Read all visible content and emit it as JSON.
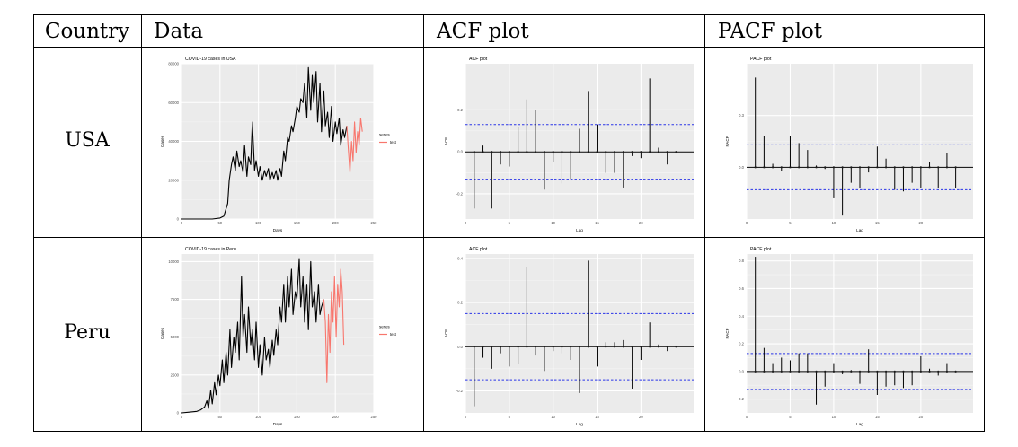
{
  "headers": [
    "Country",
    "Data",
    "ACF plot",
    "PACF plot"
  ],
  "rows": [
    {
      "country": "USA",
      "data": {
        "title": "COVID-19 cases in USA",
        "xlabel": "Days",
        "ylabel": "Cases",
        "legend_title": "series",
        "legend_item": "test"
      },
      "acf": {
        "title": "ACF plot",
        "xlabel": "Lag",
        "ylabel": "ACF"
      },
      "pacf": {
        "title": "PACF plot",
        "xlabel": "Lag",
        "ylabel": "PACF"
      }
    },
    {
      "country": "Peru",
      "data": {
        "title": "COVID-19 cases in Peru",
        "xlabel": "Days",
        "ylabel": "Cases",
        "legend_title": "series",
        "legend_item": "test"
      },
      "acf": {
        "title": "ACF plot",
        "xlabel": "Lag",
        "ylabel": "ACF"
      },
      "pacf": {
        "title": "PACF plot",
        "xlabel": "Lag",
        "ylabel": "PACF"
      }
    }
  ],
  "chart_data": [
    {
      "id": "usa-cases",
      "type": "line",
      "title": "COVID-19 cases in USA",
      "xlabel": "Days",
      "ylabel": "Cases",
      "xlim": [
        0,
        250
      ],
      "ylim": [
        0,
        80000
      ],
      "xticks": [
        0,
        50,
        100,
        150,
        200,
        250
      ],
      "yticks": [
        0,
        20000,
        40000,
        60000,
        80000
      ],
      "ytick_labels": [
        "0",
        "20000",
        "40000",
        "60000",
        "80000"
      ],
      "legend": {
        "title": "series",
        "items": [
          "test"
        ],
        "position": "right"
      },
      "series": [
        {
          "name": "",
          "color": "#000000",
          "x": [
            0,
            10,
            20,
            30,
            40,
            50,
            55,
            60,
            62,
            65,
            67,
            70,
            72,
            75,
            77,
            80,
            82,
            85,
            87,
            90,
            92,
            95,
            97,
            100,
            102,
            105,
            108,
            110,
            113,
            115,
            118,
            120,
            123,
            125,
            128,
            130,
            133,
            135,
            138,
            140,
            143,
            145,
            148,
            150,
            153,
            155,
            158,
            160,
            163,
            165,
            168,
            170,
            172,
            175,
            177,
            180,
            182,
            185,
            187,
            190,
            192,
            195,
            197,
            200,
            202,
            205,
            207,
            210,
            212,
            215
          ],
          "y": [
            0,
            0,
            0,
            0,
            0,
            500,
            1500,
            8000,
            20000,
            28000,
            32000,
            25000,
            35000,
            27000,
            30000,
            24000,
            38000,
            22000,
            32000,
            28000,
            50000,
            25000,
            30000,
            22000,
            27000,
            20000,
            25000,
            22000,
            26000,
            20000,
            24000,
            21000,
            25000,
            20000,
            26000,
            22000,
            35000,
            30000,
            42000,
            40000,
            48000,
            45000,
            52000,
            58000,
            55000,
            62000,
            60000,
            70000,
            52000,
            78000,
            56000,
            74000,
            60000,
            76000,
            50000,
            70000,
            45000,
            66000,
            48000,
            55000,
            42000,
            58000,
            40000,
            50000,
            44000,
            52000,
            38000,
            46000,
            42000,
            48000
          ]
        },
        {
          "name": "test",
          "color": "#f8766d",
          "x": [
            215,
            217,
            219,
            221,
            223,
            225,
            227,
            229,
            231,
            233,
            235
          ],
          "y": [
            48000,
            35000,
            24000,
            40000,
            30000,
            50000,
            34000,
            45000,
            38000,
            52000,
            45000
          ]
        }
      ]
    },
    {
      "id": "usa-acf",
      "type": "bar",
      "title": "ACF plot",
      "xlabel": "Lag",
      "ylabel": "ACF",
      "xlim": [
        0,
        26
      ],
      "ylim": [
        -0.32,
        0.42
      ],
      "xticks": [
        0,
        5,
        10,
        15,
        20
      ],
      "yticks": [
        -0.2,
        0.0,
        0.2
      ],
      "ytick_labels": [
        "-0.2",
        "0.0",
        "0.2"
      ],
      "ci": 0.13,
      "lags": [
        1,
        2,
        3,
        4,
        5,
        6,
        7,
        8,
        9,
        10,
        11,
        12,
        13,
        14,
        15,
        16,
        17,
        18,
        19,
        20,
        21,
        22,
        23,
        24
      ],
      "values": [
        -0.27,
        0.03,
        -0.27,
        -0.06,
        -0.07,
        0.12,
        0.25,
        0.2,
        -0.18,
        -0.05,
        -0.15,
        -0.13,
        0.11,
        0.29,
        0.13,
        -0.1,
        -0.1,
        -0.17,
        -0.02,
        -0.03,
        0.35,
        0.02,
        -0.06,
        0.0
      ]
    },
    {
      "id": "usa-pacf",
      "type": "bar",
      "title": "PACF plot",
      "xlabel": "Lag",
      "ylabel": "PACF",
      "xlim": [
        0,
        26
      ],
      "ylim": [
        -0.3,
        0.6
      ],
      "xticks": [
        0,
        5,
        10,
        15,
        20
      ],
      "yticks": [
        0.0,
        0.3
      ],
      "ytick_labels": [
        "0.0",
        "0.3"
      ],
      "ci": 0.13,
      "lags": [
        1,
        2,
        3,
        4,
        5,
        6,
        7,
        8,
        9,
        10,
        11,
        12,
        13,
        14,
        15,
        16,
        17,
        18,
        19,
        20,
        21,
        22,
        23,
        24
      ],
      "values": [
        0.52,
        0.18,
        0.02,
        -0.02,
        0.18,
        0.14,
        0.1,
        0.01,
        -0.01,
        -0.18,
        -0.28,
        -0.09,
        -0.12,
        -0.03,
        0.12,
        0.05,
        -0.13,
        -0.14,
        -0.09,
        -0.12,
        0.03,
        -0.12,
        0.08,
        -0.12
      ]
    },
    {
      "id": "peru-cases",
      "type": "line",
      "title": "COVID-19 cases in Peru",
      "xlabel": "Days",
      "ylabel": "Cases",
      "xlim": [
        0,
        250
      ],
      "ylim": [
        0,
        10500
      ],
      "xticks": [
        0,
        50,
        100,
        150,
        200,
        250
      ],
      "yticks": [
        0,
        2500,
        5000,
        7500,
        10000
      ],
      "ytick_labels": [
        "0",
        "2500",
        "5000",
        "7500",
        "10000"
      ],
      "legend": {
        "title": "series",
        "items": [
          "test"
        ],
        "position": "right"
      },
      "series": [
        {
          "name": "",
          "color": "#000000",
          "x": [
            0,
            10,
            20,
            25,
            30,
            33,
            35,
            38,
            40,
            43,
            45,
            48,
            50,
            53,
            55,
            58,
            60,
            63,
            65,
            68,
            70,
            73,
            75,
            78,
            80,
            82,
            85,
            87,
            90,
            92,
            95,
            97,
            100,
            102,
            105,
            108,
            110,
            113,
            115,
            118,
            120,
            123,
            125,
            128,
            130,
            133,
            135,
            138,
            140,
            143,
            145,
            148,
            150,
            153,
            155,
            158,
            160,
            163,
            165,
            168,
            170,
            173,
            175,
            178,
            180,
            182,
            185
          ],
          "y": [
            0,
            50,
            100,
            200,
            400,
            800,
            300,
            1500,
            600,
            2000,
            1200,
            2500,
            1800,
            3500,
            2000,
            4000,
            2500,
            5500,
            3000,
            5000,
            4000,
            6000,
            3500,
            9000,
            5000,
            6500,
            4000,
            7000,
            4500,
            5500,
            3500,
            6000,
            3000,
            4500,
            2500,
            5000,
            3500,
            4200,
            3000,
            4800,
            3800,
            5500,
            4500,
            7000,
            6000,
            8500,
            6000,
            9000,
            7000,
            9500,
            6500,
            8000,
            7500,
            10200,
            7000,
            9000,
            6000,
            8500,
            5500,
            10000,
            7000,
            8000,
            6000,
            8500,
            6500,
            7000,
            7500
          ]
        },
        {
          "name": "test",
          "color": "#f8766d",
          "x": [
            185,
            187,
            189,
            191,
            193,
            195,
            197,
            199,
            201,
            203,
            205,
            207,
            209,
            211
          ],
          "y": [
            7500,
            6000,
            2000,
            6500,
            4000,
            8000,
            6000,
            9000,
            5000,
            8500,
            7000,
            9500,
            8000,
            4500
          ]
        }
      ]
    },
    {
      "id": "peru-acf",
      "type": "bar",
      "title": "ACF plot",
      "xlabel": "Lag",
      "ylabel": "ACF",
      "xlim": [
        0,
        26
      ],
      "ylim": [
        -0.3,
        0.42
      ],
      "xticks": [
        0,
        5,
        10,
        15,
        20
      ],
      "yticks": [
        -0.2,
        0.0,
        0.2,
        0.4
      ],
      "ytick_labels": [
        "-0.2",
        "0.0",
        "0.2",
        "0.4"
      ],
      "ci": 0.15,
      "lags": [
        1,
        2,
        3,
        4,
        5,
        6,
        7,
        8,
        9,
        10,
        11,
        12,
        13,
        14,
        15,
        16,
        17,
        18,
        19,
        20,
        21,
        22,
        23,
        24
      ],
      "values": [
        -0.27,
        -0.05,
        -0.1,
        -0.03,
        -0.09,
        -0.08,
        0.36,
        -0.04,
        -0.11,
        -0.02,
        -0.03,
        -0.06,
        -0.21,
        0.39,
        -0.09,
        0.02,
        0.02,
        0.03,
        -0.19,
        -0.06,
        0.11,
        0.01,
        -0.02,
        0.0
      ]
    },
    {
      "id": "peru-pacf",
      "type": "bar",
      "title": "PACF plot",
      "xlabel": "Lag",
      "ylabel": "PACF",
      "xlim": [
        0,
        26
      ],
      "ylim": [
        -0.3,
        0.85
      ],
      "xticks": [
        0,
        5,
        10,
        15,
        20
      ],
      "yticks": [
        -0.2,
        0.0,
        0.2,
        0.4,
        0.6,
        0.8
      ],
      "ytick_labels": [
        "-0.2",
        "0.0",
        "0.2",
        "0.4",
        "0.6",
        "0.8"
      ],
      "ci": 0.13,
      "lags": [
        1,
        2,
        3,
        4,
        5,
        6,
        7,
        8,
        9,
        10,
        11,
        12,
        13,
        14,
        15,
        16,
        17,
        18,
        19,
        20,
        21,
        22,
        23,
        24
      ],
      "values": [
        0.83,
        0.17,
        0.06,
        0.1,
        0.08,
        0.13,
        0.13,
        -0.24,
        -0.11,
        0.06,
        -0.02,
        0.01,
        -0.09,
        0.16,
        -0.17,
        -0.11,
        -0.1,
        -0.12,
        -0.1,
        0.11,
        0.02,
        -0.03,
        0.06,
        0.0
      ]
    }
  ]
}
